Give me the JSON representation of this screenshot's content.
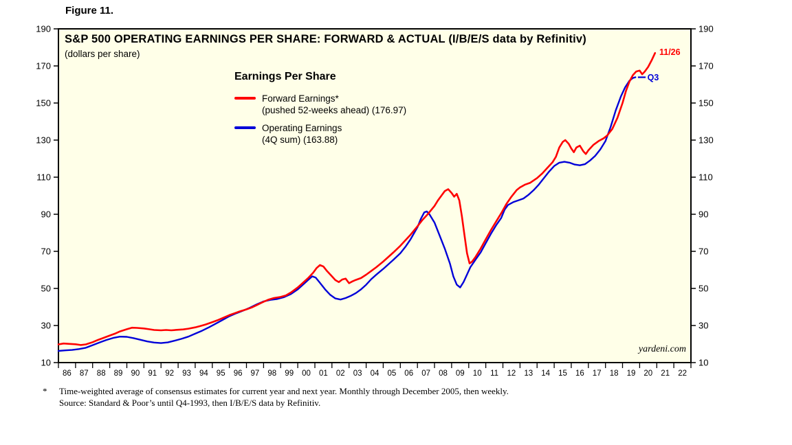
{
  "figure_label": "Figure 11.",
  "footnotes": {
    "symbol": "*",
    "line1": "Time-weighted average of consensus estimates for current year and next year. Monthly through December 2005, then weekly.",
    "line2": "Source: Standard & Poor’s until Q4-1993, then I/B/E/S data by Refinitiv."
  },
  "chart_data": {
    "type": "line",
    "title": "S&P 500 OPERATING EARNINGS PER SHARE: FORWARD & ACTUAL (I/B/E/S data by Refinitiv)",
    "subtitle": "(dollars per share)",
    "legend_title": "Earnings Per Share",
    "legend_position": "inside-top-center",
    "watermark": "yardeni.com",
    "plot_background": "#FFFFE8",
    "grid": "off",
    "x_range": [
      1986,
      2023
    ],
    "y_range": [
      10,
      190
    ],
    "y_ticks": [
      10,
      30,
      50,
      70,
      90,
      110,
      130,
      150,
      170,
      190
    ],
    "x_labels": [
      "86",
      "87",
      "88",
      "89",
      "90",
      "91",
      "92",
      "93",
      "94",
      "95",
      "96",
      "97",
      "98",
      "99",
      "00",
      "01",
      "02",
      "03",
      "04",
      "05",
      "06",
      "07",
      "08",
      "09",
      "10",
      "11",
      "12",
      "13",
      "14",
      "15",
      "16",
      "17",
      "18",
      "19",
      "20",
      "21",
      "22"
    ],
    "series": [
      {
        "id": "forward",
        "name": "Forward Earnings*",
        "detail": "(pushed 52-weeks ahead) (176.97)",
        "color": "#FF0000",
        "width": 2.6,
        "latest_label": "11/26",
        "latest_value": 176.97,
        "points": [
          [
            1986.0,
            19.8
          ],
          [
            1986.3,
            20.3
          ],
          [
            1986.6,
            20.1
          ],
          [
            1987.0,
            19.9
          ],
          [
            1987.3,
            19.5
          ],
          [
            1987.6,
            19.8
          ],
          [
            1988.0,
            21.0
          ],
          [
            1988.3,
            22.2
          ],
          [
            1988.6,
            23.2
          ],
          [
            1989.0,
            24.6
          ],
          [
            1989.3,
            25.6
          ],
          [
            1989.6,
            26.8
          ],
          [
            1990.0,
            28.0
          ],
          [
            1990.3,
            28.8
          ],
          [
            1990.6,
            28.7
          ],
          [
            1991.0,
            28.4
          ],
          [
            1991.3,
            28.0
          ],
          [
            1991.6,
            27.6
          ],
          [
            1992.0,
            27.4
          ],
          [
            1992.3,
            27.6
          ],
          [
            1992.6,
            27.4
          ],
          [
            1993.0,
            27.7
          ],
          [
            1993.3,
            27.9
          ],
          [
            1993.6,
            28.3
          ],
          [
            1994.0,
            29.0
          ],
          [
            1994.3,
            29.7
          ],
          [
            1994.6,
            30.5
          ],
          [
            1995.0,
            31.8
          ],
          [
            1995.3,
            32.8
          ],
          [
            1995.6,
            34.0
          ],
          [
            1996.0,
            35.6
          ],
          [
            1996.3,
            36.6
          ],
          [
            1996.6,
            37.6
          ],
          [
            1997.0,
            38.7
          ],
          [
            1997.3,
            39.7
          ],
          [
            1997.6,
            41.0
          ],
          [
            1998.0,
            42.8
          ],
          [
            1998.3,
            44.0
          ],
          [
            1998.6,
            44.8
          ],
          [
            1999.0,
            45.4
          ],
          [
            1999.3,
            46.2
          ],
          [
            1999.6,
            47.8
          ],
          [
            2000.0,
            50.5
          ],
          [
            2000.3,
            53.0
          ],
          [
            2000.6,
            55.5
          ],
          [
            2000.9,
            58.5
          ],
          [
            2001.1,
            61.0
          ],
          [
            2001.3,
            62.6
          ],
          [
            2001.5,
            61.8
          ],
          [
            2001.7,
            59.5
          ],
          [
            2002.0,
            56.5
          ],
          [
            2002.2,
            54.5
          ],
          [
            2002.4,
            53.4
          ],
          [
            2002.6,
            54.8
          ],
          [
            2002.8,
            55.3
          ],
          [
            2003.0,
            52.8
          ],
          [
            2003.2,
            53.8
          ],
          [
            2003.4,
            54.6
          ],
          [
            2003.7,
            55.6
          ],
          [
            2004.0,
            57.4
          ],
          [
            2004.3,
            59.4
          ],
          [
            2004.6,
            61.5
          ],
          [
            2005.0,
            64.5
          ],
          [
            2005.3,
            67.0
          ],
          [
            2005.6,
            69.5
          ],
          [
            2006.0,
            73.0
          ],
          [
            2006.3,
            76.0
          ],
          [
            2006.6,
            79.0
          ],
          [
            2007.0,
            83.5
          ],
          [
            2007.3,
            87.0
          ],
          [
            2007.6,
            90.0
          ],
          [
            2008.0,
            94.5
          ],
          [
            2008.2,
            97.5
          ],
          [
            2008.4,
            100.0
          ],
          [
            2008.6,
            102.5
          ],
          [
            2008.8,
            103.5
          ],
          [
            2009.0,
            101.5
          ],
          [
            2009.15,
            99.5
          ],
          [
            2009.3,
            101.0
          ],
          [
            2009.45,
            97.5
          ],
          [
            2009.6,
            89.0
          ],
          [
            2009.75,
            79.0
          ],
          [
            2009.9,
            69.0
          ],
          [
            2010.05,
            63.5
          ],
          [
            2010.2,
            64.5
          ],
          [
            2010.4,
            67.0
          ],
          [
            2010.7,
            71.5
          ],
          [
            2011.0,
            76.5
          ],
          [
            2011.3,
            81.5
          ],
          [
            2011.6,
            86.0
          ],
          [
            2011.9,
            90.5
          ],
          [
            2012.2,
            95.5
          ],
          [
            2012.5,
            99.5
          ],
          [
            2012.8,
            103.0
          ],
          [
            2013.0,
            104.5
          ],
          [
            2013.3,
            106.0
          ],
          [
            2013.6,
            107.0
          ],
          [
            2014.0,
            109.5
          ],
          [
            2014.3,
            112.0
          ],
          [
            2014.6,
            115.0
          ],
          [
            2014.9,
            118.0
          ],
          [
            2015.1,
            121.0
          ],
          [
            2015.3,
            126.0
          ],
          [
            2015.5,
            129.0
          ],
          [
            2015.65,
            130.0
          ],
          [
            2015.85,
            128.0
          ],
          [
            2016.0,
            125.5
          ],
          [
            2016.15,
            123.5
          ],
          [
            2016.3,
            126.0
          ],
          [
            2016.5,
            127.0
          ],
          [
            2016.7,
            124.0
          ],
          [
            2016.85,
            122.5
          ],
          [
            2017.0,
            124.5
          ],
          [
            2017.3,
            127.5
          ],
          [
            2017.6,
            129.5
          ],
          [
            2017.9,
            131.0
          ],
          [
            2018.1,
            132.5
          ],
          [
            2018.4,
            136.0
          ],
          [
            2018.7,
            142.0
          ],
          [
            2019.0,
            150.0
          ],
          [
            2019.2,
            156.5
          ],
          [
            2019.4,
            161.5
          ],
          [
            2019.6,
            165.0
          ],
          [
            2019.8,
            167.0
          ],
          [
            2020.0,
            167.5
          ],
          [
            2020.15,
            165.5
          ],
          [
            2020.3,
            167.0
          ],
          [
            2020.5,
            169.5
          ],
          [
            2020.7,
            173.0
          ],
          [
            2020.9,
            176.97
          ]
        ]
      },
      {
        "id": "operating",
        "name": "Operating Earnings",
        "detail": "(4Q sum) (163.88)",
        "color": "#0000D8",
        "width": 2.4,
        "latest_label": "Q3",
        "latest_value": 163.88,
        "points": [
          [
            1986.0,
            16.3
          ],
          [
            1986.4,
            16.6
          ],
          [
            1986.8,
            16.8
          ],
          [
            1987.2,
            17.3
          ],
          [
            1987.6,
            18.0
          ],
          [
            1988.0,
            19.4
          ],
          [
            1988.4,
            20.8
          ],
          [
            1988.8,
            22.2
          ],
          [
            1989.2,
            23.3
          ],
          [
            1989.6,
            24.0
          ],
          [
            1990.0,
            23.9
          ],
          [
            1990.4,
            23.2
          ],
          [
            1990.8,
            22.3
          ],
          [
            1991.2,
            21.4
          ],
          [
            1991.6,
            20.8
          ],
          [
            1992.0,
            20.5
          ],
          [
            1992.4,
            20.9
          ],
          [
            1992.8,
            21.8
          ],
          [
            1993.2,
            22.8
          ],
          [
            1993.6,
            24.0
          ],
          [
            1994.0,
            25.6
          ],
          [
            1994.4,
            27.2
          ],
          [
            1994.8,
            29.0
          ],
          [
            1995.2,
            31.0
          ],
          [
            1995.6,
            33.0
          ],
          [
            1996.0,
            35.0
          ],
          [
            1996.4,
            36.6
          ],
          [
            1996.8,
            38.0
          ],
          [
            1997.2,
            39.6
          ],
          [
            1997.6,
            41.4
          ],
          [
            1998.0,
            43.0
          ],
          [
            1998.4,
            43.8
          ],
          [
            1998.8,
            44.3
          ],
          [
            1999.2,
            45.3
          ],
          [
            1999.6,
            47.0
          ],
          [
            2000.0,
            49.5
          ],
          [
            2000.3,
            52.0
          ],
          [
            2000.6,
            54.5
          ],
          [
            2000.85,
            56.5
          ],
          [
            2001.05,
            55.8
          ],
          [
            2001.3,
            53.0
          ],
          [
            2001.6,
            49.5
          ],
          [
            2001.9,
            46.5
          ],
          [
            2002.2,
            44.6
          ],
          [
            2002.5,
            44.0
          ],
          [
            2002.8,
            44.8
          ],
          [
            2003.1,
            46.0
          ],
          [
            2003.4,
            47.5
          ],
          [
            2003.7,
            49.5
          ],
          [
            2004.0,
            52.0
          ],
          [
            2004.3,
            55.0
          ],
          [
            2004.6,
            57.5
          ],
          [
            2005.0,
            60.5
          ],
          [
            2005.3,
            63.0
          ],
          [
            2005.6,
            65.5
          ],
          [
            2006.0,
            69.0
          ],
          [
            2006.3,
            72.5
          ],
          [
            2006.6,
            76.5
          ],
          [
            2007.0,
            83.0
          ],
          [
            2007.2,
            87.5
          ],
          [
            2007.4,
            91.0
          ],
          [
            2007.55,
            91.5
          ],
          [
            2007.7,
            90.0
          ],
          [
            2008.0,
            85.5
          ],
          [
            2008.3,
            78.5
          ],
          [
            2008.6,
            71.5
          ],
          [
            2008.9,
            63.5
          ],
          [
            2009.1,
            56.5
          ],
          [
            2009.3,
            52.0
          ],
          [
            2009.5,
            50.5
          ],
          [
            2009.7,
            53.5
          ],
          [
            2009.9,
            57.5
          ],
          [
            2010.1,
            61.5
          ],
          [
            2010.4,
            65.5
          ],
          [
            2010.7,
            69.5
          ],
          [
            2011.0,
            74.5
          ],
          [
            2011.3,
            79.5
          ],
          [
            2011.6,
            84.0
          ],
          [
            2011.9,
            88.0
          ],
          [
            2012.1,
            92.5
          ],
          [
            2012.3,
            95.0
          ],
          [
            2012.6,
            96.5
          ],
          [
            2012.9,
            97.5
          ],
          [
            2013.2,
            98.5
          ],
          [
            2013.5,
            100.5
          ],
          [
            2013.8,
            103.0
          ],
          [
            2014.1,
            106.0
          ],
          [
            2014.4,
            109.5
          ],
          [
            2014.7,
            113.0
          ],
          [
            2015.0,
            116.0
          ],
          [
            2015.3,
            117.8
          ],
          [
            2015.6,
            118.3
          ],
          [
            2015.9,
            117.8
          ],
          [
            2016.2,
            116.8
          ],
          [
            2016.5,
            116.4
          ],
          [
            2016.8,
            117.0
          ],
          [
            2017.1,
            119.0
          ],
          [
            2017.4,
            121.5
          ],
          [
            2017.7,
            125.0
          ],
          [
            2018.0,
            129.5
          ],
          [
            2018.3,
            137.0
          ],
          [
            2018.6,
            146.0
          ],
          [
            2018.9,
            153.5
          ],
          [
            2019.15,
            158.5
          ],
          [
            2019.4,
            162.0
          ],
          [
            2019.6,
            163.5
          ],
          [
            2019.75,
            163.88
          ]
        ]
      }
    ],
    "annotations": [
      {
        "text": "11/26",
        "color": "#FF0000",
        "x": 2021.15,
        "y": 177.6
      },
      {
        "text": "Q3",
        "color": "#0000D8",
        "x": 2020.45,
        "y": 163.88,
        "leader": {
          "x1": 2019.9,
          "x2": 2020.35,
          "y": 163.88
        }
      }
    ]
  }
}
